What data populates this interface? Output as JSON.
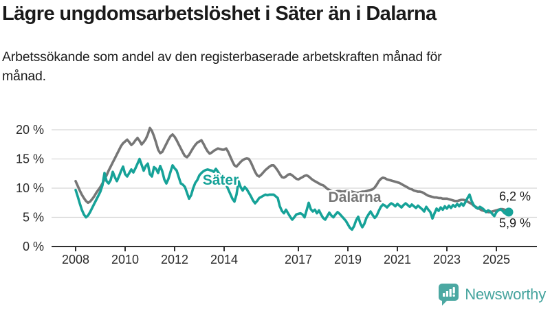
{
  "header": {
    "title": "Lägre ungdomsarbetslöshet i Säter än i Dalarna",
    "subtitle": "Arbetssökande som andel av den registerbaserade arbetskraften månad för månad."
  },
  "chart_data": {
    "type": "line",
    "unit": "%",
    "frequency": "monthly",
    "x_start": "2008-01",
    "x_end": "2025-07",
    "ylim": [
      0,
      21
    ],
    "grid": "horizontal",
    "y_ticks": [
      0,
      5,
      10,
      15,
      20
    ],
    "y_tick_labels": [
      "0 %",
      "5 %",
      "10 %",
      "15 %",
      "20 %"
    ],
    "x_ticks": [
      {
        "year": 2008,
        "label": "2008"
      },
      {
        "year": 2010,
        "label": "2010"
      },
      {
        "year": 2012,
        "label": "2012"
      },
      {
        "year": 2014,
        "label": "2014"
      },
      {
        "year": 2017,
        "label": "2017"
      },
      {
        "year": 2019,
        "label": "2019"
      },
      {
        "year": 2021,
        "label": "2021"
      },
      {
        "year": 2023,
        "label": "2023"
      },
      {
        "year": 2025,
        "label": "2025"
      }
    ],
    "series": [
      {
        "name": "Dalarna",
        "line_label": "Dalarna",
        "end_label": "6,2 %",
        "end_value": 6.2,
        "color": "#767676",
        "marker_end": false,
        "values": [
          11.2,
          10.4,
          9.6,
          8.9,
          8.3,
          7.8,
          7.5,
          7.7,
          8.1,
          8.6,
          9.2,
          9.7,
          10.2,
          10.8,
          11.5,
          12.2,
          13.0,
          13.7,
          14.4,
          15.1,
          15.8,
          16.5,
          17.2,
          17.7,
          18.0,
          18.3,
          17.9,
          17.4,
          17.7,
          18.2,
          18.6,
          18.1,
          17.5,
          17.9,
          18.4,
          19.2,
          20.3,
          19.8,
          18.9,
          17.8,
          16.6,
          16.0,
          16.2,
          16.9,
          17.6,
          18.3,
          18.9,
          19.2,
          18.8,
          18.2,
          17.5,
          16.8,
          16.1,
          15.5,
          15.3,
          15.7,
          16.3,
          16.9,
          17.4,
          17.8,
          18.0,
          18.2,
          17.6,
          16.9,
          16.3,
          15.9,
          16.1,
          16.4,
          16.6,
          16.8,
          16.7,
          16.6,
          16.6,
          16.8,
          16.2,
          15.4,
          14.6,
          13.9,
          13.7,
          14.1,
          14.5,
          14.8,
          15.0,
          15.1,
          15.0,
          14.4,
          13.6,
          12.8,
          12.2,
          12.0,
          12.3,
          12.7,
          13.1,
          13.4,
          13.7,
          13.9,
          13.9,
          13.5,
          13.0,
          12.4,
          11.9,
          11.8,
          12.0,
          12.3,
          12.4,
          12.2,
          11.9,
          11.6,
          11.5,
          11.7,
          11.9,
          12.1,
          12.2,
          12.0,
          11.7,
          11.4,
          11.2,
          11.0,
          10.8,
          10.6,
          10.5,
          10.2,
          9.9,
          9.7,
          9.5,
          9.4,
          9.4,
          9.5,
          9.5,
          9.4,
          9.4,
          9.5,
          9.6,
          9.5,
          9.4,
          9.3,
          9.2,
          9.2,
          9.3,
          9.4,
          9.4,
          9.5,
          9.6,
          9.7,
          9.8,
          10.1,
          10.6,
          11.2,
          11.6,
          11.8,
          11.7,
          11.5,
          11.4,
          11.3,
          11.2,
          11.1,
          11.0,
          10.9,
          10.7,
          10.5,
          10.3,
          10.1,
          9.9,
          9.8,
          9.6,
          9.5,
          9.4,
          9.4,
          9.3,
          9.1,
          8.9,
          8.7,
          8.6,
          8.5,
          8.4,
          8.4,
          8.3,
          8.3,
          8.2,
          8.2,
          8.2,
          8.1,
          8.0,
          7.9,
          7.8,
          7.8,
          7.9,
          8.0,
          8.0,
          7.9,
          7.7,
          7.5,
          7.3,
          7.0,
          6.8,
          6.6,
          6.4,
          6.2,
          6.1,
          6.0,
          5.9,
          5.9,
          6.0,
          6.1,
          6.2,
          6.3,
          6.4,
          6.4,
          6.3,
          6.2,
          6.2
        ]
      },
      {
        "name": "Säter",
        "line_label": "Säter",
        "end_label": "5,9 %",
        "end_value": 5.9,
        "color": "#16a298",
        "marker_end": true,
        "values": [
          9.7,
          8.6,
          7.4,
          6.3,
          5.5,
          5.0,
          5.3,
          5.9,
          6.6,
          7.3,
          8.0,
          8.7,
          9.4,
          10.5,
          12.6,
          11.2,
          10.8,
          11.4,
          12.8,
          11.9,
          11.2,
          12.0,
          12.9,
          13.7,
          12.4,
          12.0,
          12.6,
          13.2,
          12.7,
          13.4,
          14.2,
          15.0,
          14.0,
          13.0,
          13.8,
          14.2,
          12.4,
          12.0,
          13.6,
          13.3,
          12.6,
          13.8,
          12.9,
          11.5,
          10.8,
          11.6,
          12.8,
          13.9,
          13.4,
          13.0,
          11.9,
          10.8,
          10.6,
          10.2,
          9.2,
          8.2,
          8.8,
          10.0,
          10.9,
          11.4,
          12.2,
          12.6,
          12.9,
          13.1,
          13.2,
          13.1,
          13.0,
          12.8,
          13.3,
          12.8,
          12.2,
          11.6,
          11.2,
          10.6,
          9.8,
          9.0,
          8.2,
          7.7,
          8.9,
          11.2,
          10.2,
          9.6,
          10.2,
          9.8,
          9.2,
          8.6,
          7.9,
          7.4,
          7.8,
          8.3,
          8.5,
          8.7,
          8.9,
          8.8,
          8.9,
          8.9,
          8.9,
          8.6,
          8.3,
          6.9,
          6.1,
          5.7,
          6.3,
          5.7,
          5.1,
          4.6,
          5.0,
          5.5,
          5.6,
          5.7,
          5.5,
          5.0,
          6.2,
          7.5,
          6.4,
          6.0,
          6.3,
          5.7,
          6.2,
          5.5,
          4.9,
          4.6,
          5.2,
          5.8,
          5.3,
          5.0,
          5.5,
          5.9,
          5.6,
          5.2,
          4.8,
          4.4,
          3.8,
          3.2,
          2.9,
          3.5,
          4.5,
          5.1,
          4.0,
          3.3,
          3.9,
          4.9,
          5.5,
          6.0,
          5.4,
          4.9,
          5.3,
          6.1,
          6.8,
          7.2,
          7.0,
          6.7,
          7.1,
          7.4,
          7.2,
          6.9,
          7.3,
          7.0,
          6.7,
          7.1,
          7.4,
          7.1,
          6.8,
          7.2,
          6.9,
          6.6,
          7.0,
          6.7,
          6.4,
          6.0,
          6.8,
          6.3,
          5.9,
          4.8,
          5.7,
          6.5,
          6.1,
          6.7,
          6.3,
          6.9,
          6.5,
          7.0,
          6.6,
          7.1,
          6.8,
          7.3,
          6.9,
          7.4,
          7.0,
          7.6,
          8.3,
          8.9,
          7.8,
          7.1,
          6.7,
          6.5,
          6.8,
          6.6,
          6.3,
          5.9,
          6.2,
          6.0,
          5.6,
          5.2,
          5.9,
          6.2,
          6.4,
          6.1,
          5.7,
          5.6,
          5.9
        ]
      }
    ],
    "colors": {
      "grid": "#d8d8d8",
      "axis": "#2f2f2f",
      "tick_text": "#2b2b2b",
      "end_label_text": "#1a1a1a"
    }
  },
  "footer": {
    "brand": "Newsworthy",
    "brand_color": "#46a49e"
  }
}
